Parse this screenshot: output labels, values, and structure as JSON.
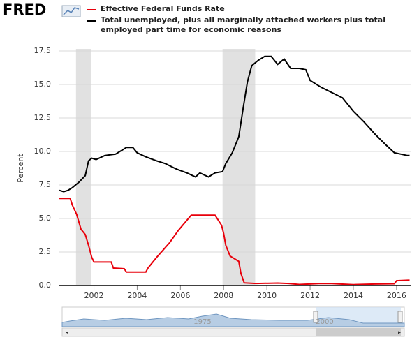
{
  "chart_data": {
    "type": "line",
    "brand": "FRED",
    "ylabel": "Percent",
    "xlim": [
      2000.4,
      2016.65
    ],
    "xticks": [
      2002,
      2004,
      2006,
      2008,
      2010,
      2012,
      2014,
      2016
    ],
    "ylim": [
      0,
      17.5
    ],
    "yticks": [
      {
        "value": 0,
        "label": "0.0"
      },
      2.5,
      {
        "value": 5,
        "label": "5.0"
      },
      7.5,
      {
        "value": 10,
        "label": "10.0"
      },
      12.5,
      {
        "value": 15,
        "label": "15.0"
      },
      17.5
    ],
    "grid": true,
    "recessions": [
      [
        2001.17,
        2001.88
      ],
      [
        2007.95,
        2009.46
      ]
    ],
    "series": [
      {
        "name": "Effective Federal Funds Rate",
        "color": "#e8000b",
        "x": [
          2000.4,
          2000.9,
          2001.0,
          2001.2,
          2001.4,
          2001.6,
          2001.75,
          2001.9,
          2002.0,
          2002.8,
          2002.9,
          2003.4,
          2003.5,
          2004.4,
          2004.5,
          2004.9,
          2005.5,
          2005.9,
          2006.5,
          2007.6,
          2007.7,
          2007.9,
          2008.0,
          2008.1,
          2008.3,
          2008.5,
          2008.7,
          2008.8,
          2008.95,
          2009.5,
          2010.5,
          2011.0,
          2011.5,
          2012.5,
          2013.0,
          2014.0,
          2015.0,
          2015.9,
          2016.0,
          2016.6
        ],
        "values": [
          6.5,
          6.5,
          6.0,
          5.3,
          4.2,
          3.8,
          3.0,
          2.1,
          1.75,
          1.75,
          1.3,
          1.25,
          1.0,
          1.0,
          1.3,
          2.1,
          3.2,
          4.1,
          5.25,
          5.25,
          5.0,
          4.5,
          3.9,
          3.0,
          2.2,
          2.0,
          1.8,
          0.9,
          0.2,
          0.15,
          0.18,
          0.15,
          0.08,
          0.15,
          0.14,
          0.07,
          0.11,
          0.13,
          0.36,
          0.4
        ]
      },
      {
        "name": "Total unemployed, plus all marginally attached workers plus total employed part time for economic reasons",
        "color": "#000000",
        "x": [
          2000.4,
          2000.6,
          2000.8,
          2001.0,
          2001.3,
          2001.6,
          2001.75,
          2001.9,
          2002.1,
          2002.5,
          2003.0,
          2003.3,
          2003.5,
          2003.8,
          2004.0,
          2004.4,
          2004.9,
          2005.3,
          2005.8,
          2006.3,
          2006.7,
          2006.9,
          2007.3,
          2007.6,
          2007.95,
          2008.1,
          2008.4,
          2008.7,
          2008.9,
          2009.1,
          2009.3,
          2009.6,
          2009.9,
          2010.2,
          2010.5,
          2010.8,
          2011.1,
          2011.5,
          2011.8,
          2012.0,
          2012.5,
          2013.0,
          2013.5,
          2014.0,
          2014.5,
          2015.0,
          2015.5,
          2015.9,
          2016.2,
          2016.5,
          2016.6
        ],
        "values": [
          7.1,
          7.0,
          7.1,
          7.3,
          7.7,
          8.2,
          9.3,
          9.5,
          9.4,
          9.7,
          9.8,
          10.1,
          10.3,
          10.3,
          9.9,
          9.6,
          9.3,
          9.1,
          8.7,
          8.4,
          8.1,
          8.4,
          8.1,
          8.4,
          8.5,
          9.1,
          9.9,
          11.1,
          13.2,
          15.2,
          16.4,
          16.8,
          17.1,
          17.1,
          16.5,
          16.9,
          16.2,
          16.2,
          16.1,
          15.3,
          14.8,
          14.4,
          14.0,
          13.0,
          12.2,
          11.3,
          10.5,
          9.9,
          9.8,
          9.7,
          9.7
        ]
      }
    ],
    "navigator": {
      "labels": [
        "1975",
        "2000"
      ]
    }
  }
}
